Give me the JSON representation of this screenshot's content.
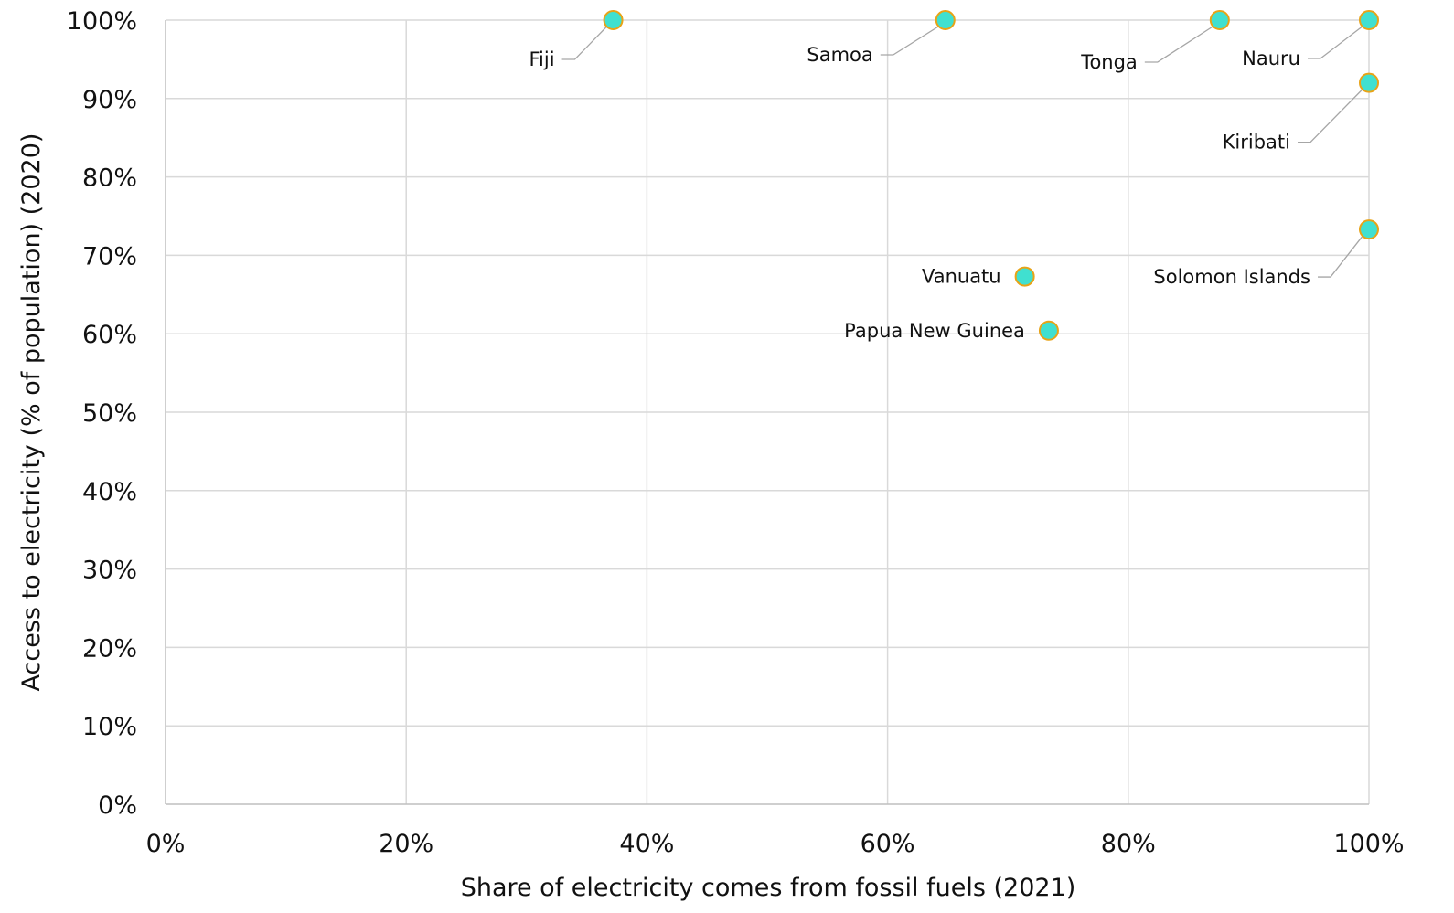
{
  "chart_data": {
    "type": "scatter",
    "xlabel": "Share of electricity comes from fossil fuels (2021)",
    "ylabel": "Access to electricity (% of population) (2020)",
    "xlim": [
      0,
      100
    ],
    "ylim": [
      0,
      100
    ],
    "x_ticks": [
      "0%",
      "20%",
      "40%",
      "60%",
      "80%",
      "100%"
    ],
    "y_ticks": [
      "0%",
      "10%",
      "20%",
      "30%",
      "40%",
      "50%",
      "60%",
      "70%",
      "80%",
      "90%",
      "100%"
    ],
    "grid": true,
    "marker_fill": "#40E0D0",
    "marker_edge": "#E8A317",
    "points": [
      {
        "label": "Fiji",
        "x": 37.2,
        "y": 100
      },
      {
        "label": "Samoa",
        "x": 64.8,
        "y": 100
      },
      {
        "label": "Tonga",
        "x": 87.6,
        "y": 100
      },
      {
        "label": "Nauru",
        "x": 100,
        "y": 100
      },
      {
        "label": "Kiribati",
        "x": 100,
        "y": 92
      },
      {
        "label": "Solomon Islands",
        "x": 100,
        "y": 73.3
      },
      {
        "label": "Vanuatu",
        "x": 71.4,
        "y": 67.3
      },
      {
        "label": "Papua New Guinea",
        "x": 73.4,
        "y": 60.4
      }
    ]
  }
}
